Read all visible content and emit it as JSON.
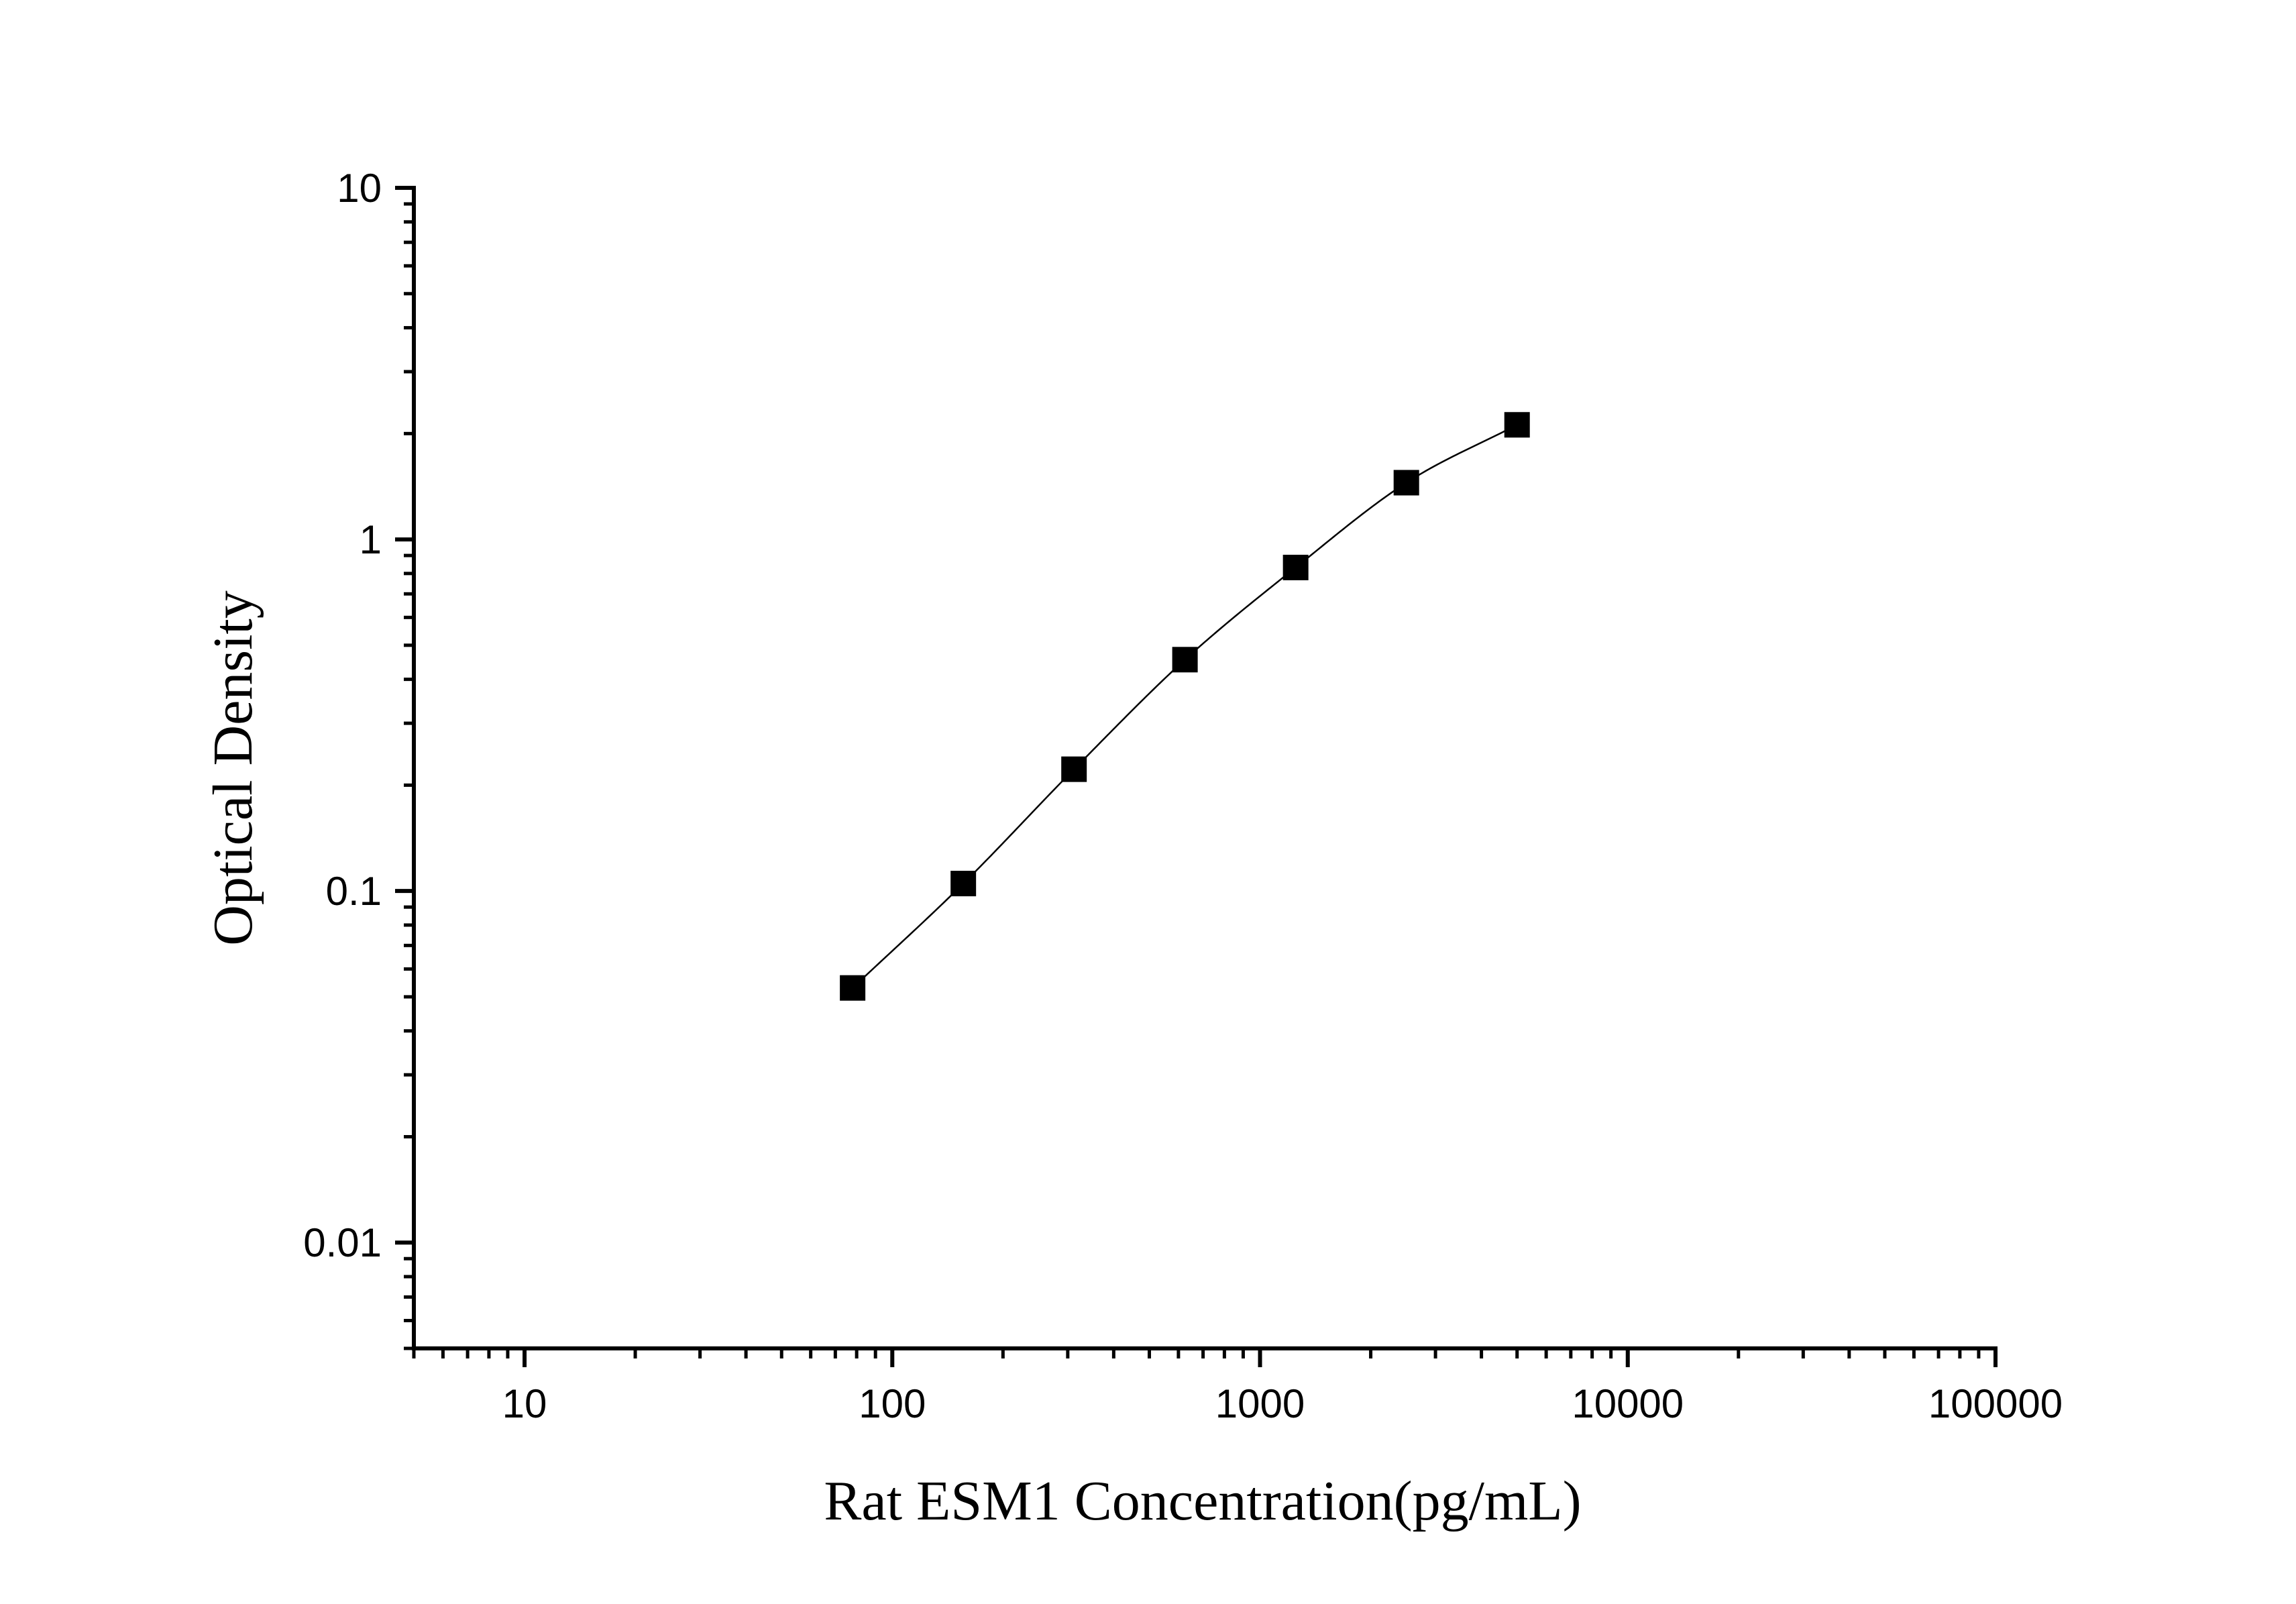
{
  "chart_data": {
    "type": "scatter",
    "title": "",
    "xlabel": "Rat ESM1 Concentration(pg/mL)",
    "ylabel": "Optical Density",
    "x_scale": "log",
    "y_scale": "log",
    "xlim": [
      5,
      100000
    ],
    "ylim": [
      0.005,
      10
    ],
    "x_ticks": [
      {
        "value": 10,
        "label": "10"
      },
      {
        "value": 100,
        "label": "100"
      },
      {
        "value": 1000,
        "label": "1000"
      },
      {
        "value": 10000,
        "label": "10000"
      },
      {
        "value": 100000,
        "label": "100000"
      }
    ],
    "y_ticks": [
      {
        "value": 0.01,
        "label": "0.01"
      },
      {
        "value": 0.1,
        "label": "0.1"
      },
      {
        "value": 1,
        "label": "1"
      },
      {
        "value": 10,
        "label": "10"
      }
    ],
    "grid": false,
    "legend": "none",
    "series": [
      {
        "marker": "square",
        "color": "#000000",
        "fit_line": true,
        "x": [
          78,
          156,
          312,
          625,
          1250,
          2500,
          5000
        ],
        "y": [
          0.053,
          0.105,
          0.222,
          0.455,
          0.832,
          1.45,
          2.118
        ]
      }
    ]
  }
}
